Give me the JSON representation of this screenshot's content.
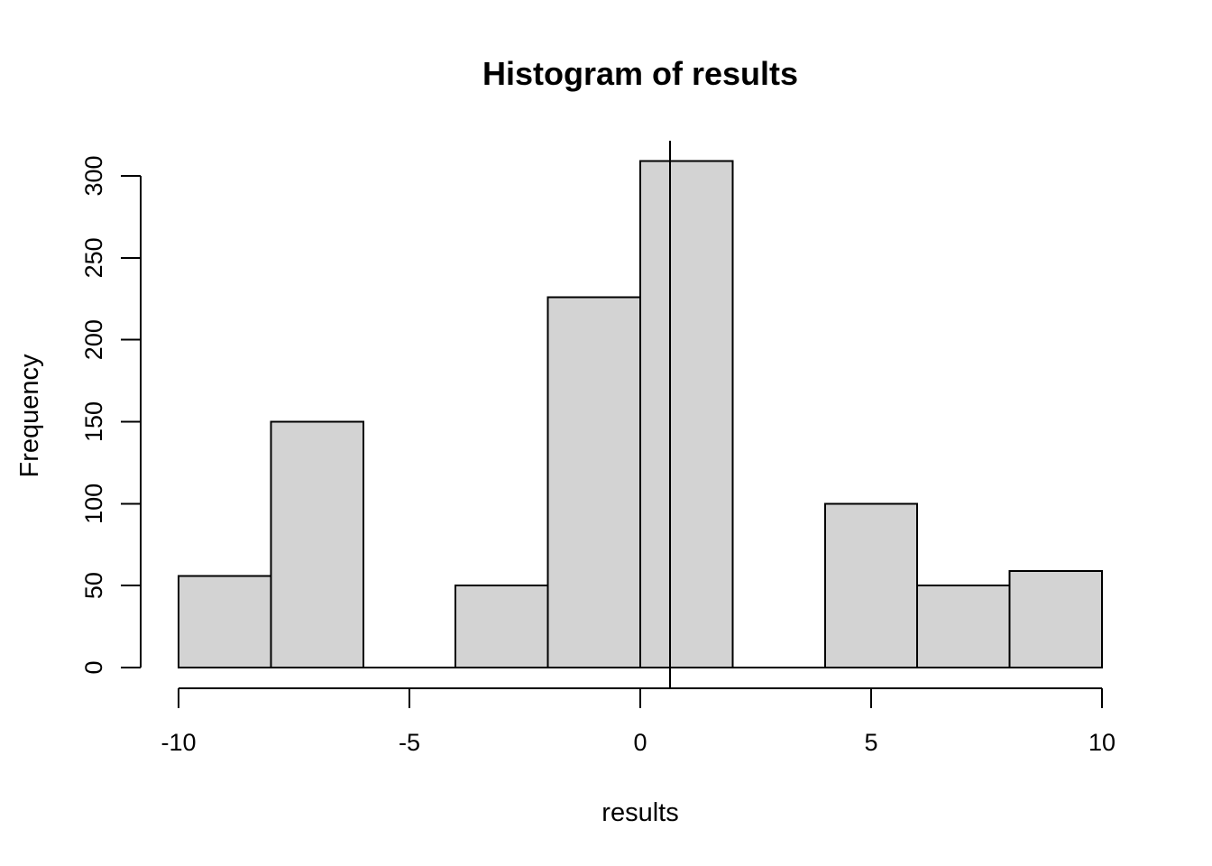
{
  "chart_data": {
    "type": "histogram",
    "title": "Histogram of results",
    "xlabel": "results",
    "ylabel": "Frequency",
    "breaks": [
      -10,
      -8,
      -6,
      -4,
      -2,
      0,
      2,
      4,
      6,
      8,
      10
    ],
    "counts": [
      56,
      150,
      0,
      50,
      226,
      309,
      0,
      100,
      50,
      59
    ],
    "xticks": [
      -10,
      -5,
      0,
      5,
      10
    ],
    "yticks": [
      0,
      50,
      100,
      150,
      200,
      250,
      300
    ],
    "xlim": [
      -10,
      10
    ],
    "ylim": [
      0,
      309
    ],
    "vline_x": 0.64,
    "bar_fill": "#d3d3d3",
    "bar_stroke": "#000000",
    "axis_color": "#000000",
    "background": "#ffffff",
    "grid": false,
    "legend_position": "none"
  }
}
